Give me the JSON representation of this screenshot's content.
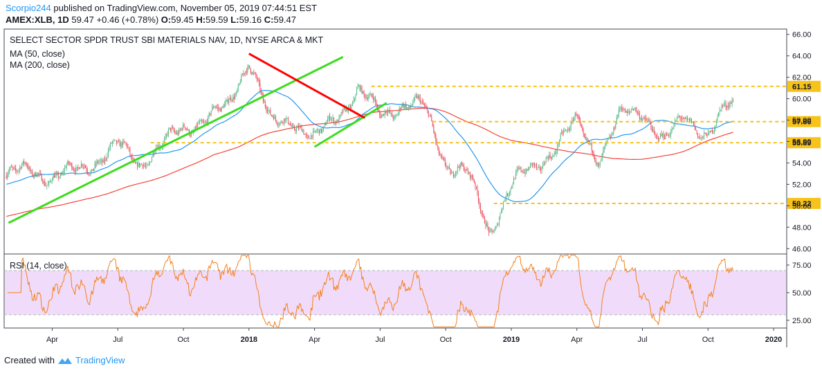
{
  "header": {
    "user": "Scorpio244",
    "published": " published on TradingView.com, November 05, 2019 07:44:51 EST",
    "symbol": "AMEX:XLB, 1D",
    "last": "59.47",
    "change": "+0.46 (+0.78%)",
    "o_label": "O:",
    "o": "59.45",
    "h_label": "H:",
    "h": "59.59",
    "l_label": "L:",
    "l": "59.16",
    "c_label": "C:",
    "c": "59.47"
  },
  "footer": {
    "created_with": "Created with",
    "brand": "TradingView"
  },
  "colors": {
    "up": "#53b987",
    "down": "#eb4d5c",
    "ma50": "#2196f3",
    "ma200": "#f44336",
    "green_trend": "#3cdc1e",
    "red_trend": "#ff0000",
    "level": "#f7c21a",
    "rsi_line": "#f57f17",
    "rsi_band": "#f0dcfa"
  },
  "chart_data": [
    {
      "type": "candlestick",
      "title": "SELECT SECTOR SPDR TRUST SBI MATERIALS NAV, 1D, NYSE ARCA & MKT",
      "indicators": [
        "MA (50, close)",
        "MA (200, close)"
      ],
      "ylim": [
        45.5,
        66.5
      ],
      "y_ticks": [
        "66.00",
        "64.00",
        "62.00",
        "60.00",
        "58.00",
        "56.00",
        "54.00",
        "52.00",
        "50.00",
        "48.00",
        "46.00"
      ],
      "x_ticks": [
        "Apr",
        "Jul",
        "Oct",
        "2018",
        "Apr",
        "Jul",
        "Oct",
        "2019",
        "Apr",
        "Jul",
        "Oct",
        "2020"
      ],
      "price_path_months": [
        [
          "2017-02",
          52.8
        ],
        [
          "2017-03",
          53.4
        ],
        [
          "2017-04",
          52.6
        ],
        [
          "2017-05",
          53.2
        ],
        [
          "2017-06",
          54.2
        ],
        [
          "2017-07",
          55.6
        ],
        [
          "2017-08",
          54.0
        ],
        [
          "2017-09",
          55.6
        ],
        [
          "2017-10",
          57.2
        ],
        [
          "2017-11",
          58.2
        ],
        [
          "2017-12",
          59.0
        ],
        [
          "2018-01",
          63.9
        ],
        [
          "2018-02",
          57.5
        ],
        [
          "2018-03",
          58.2
        ],
        [
          "2018-04",
          56.0
        ],
        [
          "2018-05",
          58.4
        ],
        [
          "2018-06",
          60.8
        ],
        [
          "2018-07",
          58.5
        ],
        [
          "2018-08",
          59.5
        ],
        [
          "2018-09",
          59.2
        ],
        [
          "2018-10",
          54.0
        ],
        [
          "2018-11",
          53.0
        ],
        [
          "2018-12",
          47.5
        ],
        [
          "2019-01",
          52.0
        ],
        [
          "2019-02",
          53.5
        ],
        [
          "2019-03",
          55.5
        ],
        [
          "2019-04",
          57.8
        ],
        [
          "2019-05",
          54.5
        ],
        [
          "2019-06",
          58.3
        ],
        [
          "2019-07",
          59.0
        ],
        [
          "2019-08",
          55.8
        ],
        [
          "2019-09",
          58.5
        ],
        [
          "2019-10",
          56.5
        ],
        [
          "2019-11",
          59.5
        ]
      ],
      "levels": [
        {
          "value": 61.15,
          "label": "61.15"
        },
        {
          "value": 57.86,
          "label": "57.86"
        },
        {
          "value": 55.89,
          "label": "55.89"
        },
        {
          "value": 50.22,
          "label": "50.22"
        }
      ],
      "trendlines": [
        {
          "color": "green",
          "from": [
            "2017-02",
            48.4
          ],
          "to": [
            "2018-05",
            63.9
          ]
        },
        {
          "color": "green",
          "from": [
            "2018-04",
            55.5
          ],
          "to": [
            "2018-07",
            59.6
          ]
        },
        {
          "color": "red",
          "from": [
            "2018-01",
            64.2
          ],
          "to": [
            "2018-06",
            58.2
          ]
        }
      ]
    },
    {
      "type": "line",
      "title": "RSI (14, close)",
      "ylim": [
        18,
        85
      ],
      "y_ticks": [
        "75.00",
        "50.00",
        "25.00"
      ],
      "band": [
        30,
        70
      ]
    }
  ]
}
